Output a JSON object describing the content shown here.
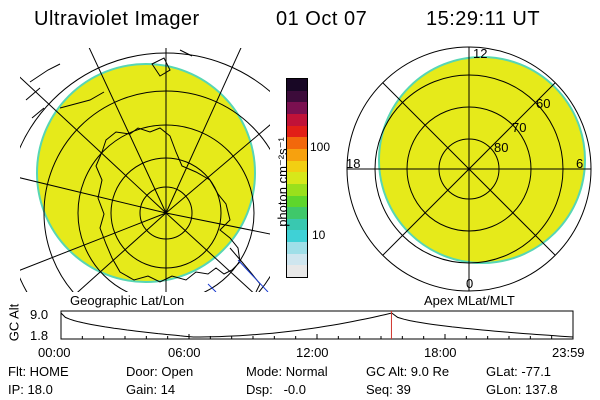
{
  "header": {
    "title": "Ultraviolet Imager",
    "date": "01 Oct 07",
    "time": "15:29:11 UT"
  },
  "left_panel": {
    "label": "Geographic Lat/Lon",
    "fill_color": "#e6ea1a",
    "rim_color": "#57d6b4"
  },
  "right_panel": {
    "label": "Apex MLat/MLT",
    "fill_color": "#e6ea1a",
    "rim_color": "#57d6b4",
    "mlt_labels": {
      "top": "12",
      "left": "18",
      "right": "6",
      "bottom": "0"
    },
    "lat_labels": [
      "60",
      "70",
      "80"
    ]
  },
  "colorbar": {
    "unit_label": "photon cm⁻²s⁻¹",
    "ticks": [
      "100",
      "10"
    ],
    "colors": [
      "#e8e8e8",
      "#cfe6ef",
      "#9fdfe8",
      "#3fd1d6",
      "#39c8b0",
      "#3fc86a",
      "#5ed62c",
      "#9ae01c",
      "#d7e81a",
      "#f2cf12",
      "#f7a10e",
      "#f2680c",
      "#e21f17",
      "#c01238",
      "#7a1050",
      "#3c0b3a",
      "#180725"
    ]
  },
  "altitude_plot": {
    "ylabel": "GC Alt",
    "ytick_top": "9.0",
    "ytick_bottom": "1.8",
    "xticks": [
      "00:00",
      "06:00",
      "12:00",
      "18:00",
      "23:59"
    ],
    "series_hours": [
      0,
      6.2,
      15.5,
      24
    ],
    "series_alt": [
      9.0,
      1.8,
      9.0,
      1.8
    ],
    "current_hour": 15.49,
    "marker_color": "#d0342c"
  },
  "status": {
    "flt": "Flt: HOME",
    "ip": "IP: 18.0",
    "door": "Door: Open",
    "gain": "Gain: 14",
    "mode": "Mode: Normal",
    "dsp": "Dsp:   -0.0",
    "gcalt": "GC Alt: 9.0 Re",
    "seq": "Seq: 39",
    "glat": "GLat: -77.1",
    "glon": "GLon: 137.8"
  }
}
